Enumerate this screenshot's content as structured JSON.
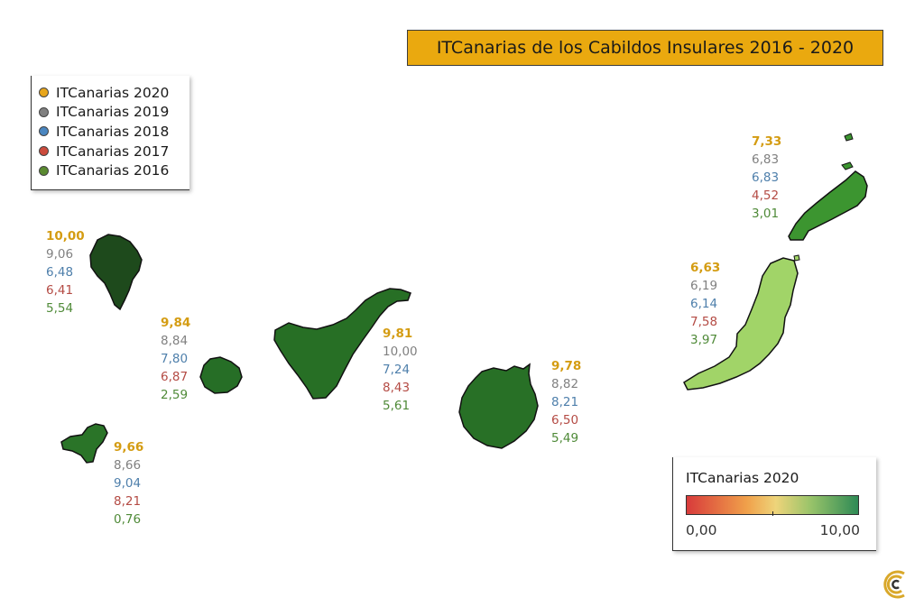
{
  "title": "ITCanarias de los Cabildos Insulares 2016 - 2020",
  "legend": {
    "items": [
      {
        "label": "ITCanarias 2020",
        "color": "#e8a61c"
      },
      {
        "label": "ITCanarias 2019",
        "color": "#808080"
      },
      {
        "label": "ITCanarias 2018",
        "color": "#4a86c0"
      },
      {
        "label": "ITCanarias 2017",
        "color": "#cc4b3c"
      },
      {
        "label": "ITCanarias 2016",
        "color": "#5a8a30"
      }
    ]
  },
  "scale": {
    "title": "ITCanarias 2020",
    "min_label": "0,00",
    "max_label": "10,00",
    "colors": [
      "#d83b3b",
      "#f0a04a",
      "#eed47a",
      "#9ac46a",
      "#2e8a55"
    ]
  },
  "islands": [
    {
      "id": "la-palma",
      "fill": "#1e4a1c",
      "values": {
        "v2020": "10,00",
        "v2019": "9,06",
        "v2018": "6,48",
        "v2017": "6,41",
        "v2016": "5,54"
      }
    },
    {
      "id": "la-gomera",
      "fill": "#266e26",
      "values": {
        "v2020": "9,84",
        "v2019": "8,84",
        "v2018": "7,80",
        "v2017": "6,87",
        "v2016": "2,59"
      }
    },
    {
      "id": "el-hierro",
      "fill": "#2a7428",
      "values": {
        "v2020": "9,66",
        "v2019": "8,66",
        "v2018": "9,04",
        "v2017": "8,21",
        "v2016": "0,76"
      }
    },
    {
      "id": "tenerife",
      "fill": "#276f25",
      "values": {
        "v2020": "9,81",
        "v2019": "10,00",
        "v2018": "7,24",
        "v2017": "8,43",
        "v2016": "5,61"
      }
    },
    {
      "id": "gran-canaria",
      "fill": "#287026",
      "values": {
        "v2020": "9,78",
        "v2019": "8,82",
        "v2018": "8,21",
        "v2017": "6,50",
        "v2016": "5,49"
      }
    },
    {
      "id": "fuerteventura",
      "fill": "#a1d468",
      "values": {
        "v2020": "6,63",
        "v2019": "6,19",
        "v2018": "6,14",
        "v2017": "7,58",
        "v2016": "3,97"
      }
    },
    {
      "id": "lanzarote",
      "fill": "#3c9530",
      "values": {
        "v2020": "7,33",
        "v2019": "6,83",
        "v2018": "6,83",
        "v2017": "4,52",
        "v2016": "3,01"
      }
    }
  ]
}
